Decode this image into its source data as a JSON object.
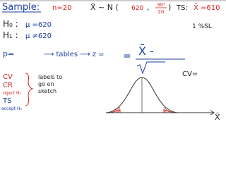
{
  "header": {
    "title": "Sample:",
    "n": "n=20",
    "distribution": "X̄ ~ N (",
    "mean": "620",
    "comma": ",",
    "var_num": "30²",
    "var_den": "20",
    "close": ")",
    "ts": "TS:",
    "ts_value": "X̄ =610"
  },
  "hypotheses": {
    "h0_label": "H₀ :",
    "h0": "μ =620",
    "h1_label": "H₁ :",
    "h1": "μ ≠620",
    "sl": "1 %SL"
  },
  "working": {
    "p": "p=",
    "tables": "⟶ tables ⟶ z =",
    "numerator": "X̄ -",
    "cv_eq": "CV="
  },
  "labels": {
    "cv": "CV",
    "cr": "CR",
    "reject": "reject H₀",
    "ts": "TS",
    "accept": "accept H₀",
    "note": [
      "labels to",
      "go on",
      "sketch"
    ]
  },
  "sketch": {
    "axis_label": "X̄"
  }
}
